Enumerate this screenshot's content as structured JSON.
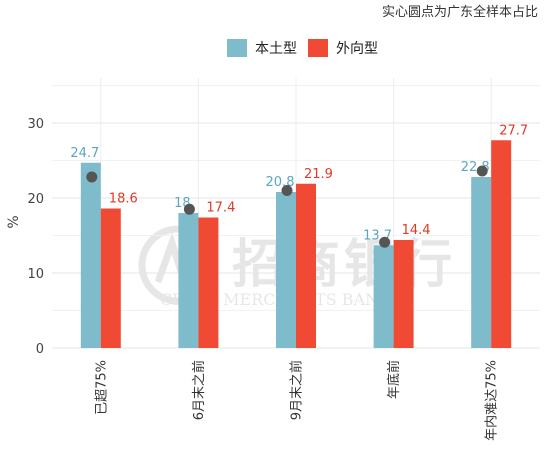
{
  "chart_data": {
    "type": "bar",
    "note": "实心圆点为广东全样本占比",
    "ylabel": "%",
    "ylim": [
      0,
      36
    ],
    "yticks": [
      0,
      10,
      20,
      30
    ],
    "grid": true,
    "legend_position": "top-center",
    "categories": [
      "已超75%",
      "6月末之前",
      "9月末之前",
      "年底前",
      "年内难达75%"
    ],
    "series": [
      {
        "name": "本土型",
        "color": "#7fbccb",
        "label_color": "#5aa7bd",
        "values": [
          24.7,
          18,
          20.8,
          13.7,
          22.8
        ],
        "labels": [
          "24.7",
          "18",
          "20.8",
          "13.7",
          "22.8"
        ]
      },
      {
        "name": "外向型",
        "color": "#f04a35",
        "label_color": "#e03a26",
        "values": [
          18.6,
          17.4,
          21.9,
          14.4,
          27.7
        ],
        "labels": [
          "18.6",
          "17.4",
          "21.9",
          "14.4",
          "27.7"
        ]
      }
    ],
    "markers": {
      "label": "广东全样本占比",
      "color": "#555555",
      "values": [
        22.8,
        18.5,
        21.0,
        14.1,
        23.6
      ]
    }
  },
  "watermark": {
    "text_cn": "招商银行",
    "text_en": "CHINA MERCHANTS BANK"
  }
}
